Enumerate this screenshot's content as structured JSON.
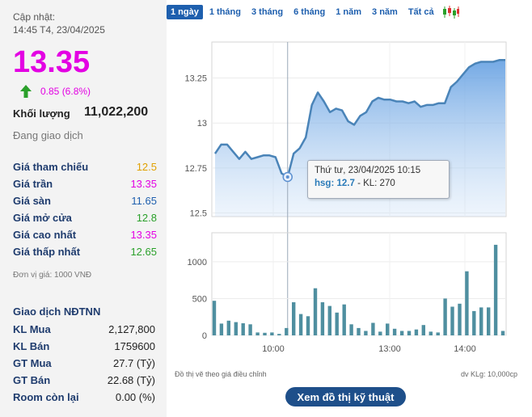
{
  "stock": {
    "updated_label": "Cập nhật:",
    "updated_time": "14:45 T4, 23/04/2025",
    "price": "13.35",
    "change": "0.85 (6.8%)",
    "volume_label": "Khối lượng",
    "volume_value": "11,022,200",
    "status": "Đang giao dịch",
    "unit_note": "Đơn vị giá: 1000 VNĐ"
  },
  "price_rows": [
    {
      "label": "Giá tham chiếu",
      "value": "12.5"
    },
    {
      "label": "Giá trần",
      "value": "13.35"
    },
    {
      "label": "Giá sàn",
      "value": "11.65"
    },
    {
      "label": "Giá mở cửa",
      "value": "12.8"
    },
    {
      "label": "Giá cao nhất",
      "value": "13.35"
    },
    {
      "label": "Giá thấp nhất",
      "value": "12.65"
    }
  ],
  "foreign": {
    "title": "Giao dịch NĐTNN",
    "rows": [
      {
        "label": "KL Mua",
        "value": "2,127,800"
      },
      {
        "label": "KL Bán",
        "value": "1759600"
      },
      {
        "label": "GT Mua",
        "value": "27.7 (Tỷ)"
      },
      {
        "label": "GT Bán",
        "value": "22.68 (Tỷ)"
      },
      {
        "label": "Room còn lại",
        "value": "0.00 (%)"
      }
    ]
  },
  "tabs": [
    "1 ngày",
    "1 tháng",
    "3 tháng",
    "6 tháng",
    "1 năm",
    "3 năm",
    "Tất cả"
  ],
  "active_tab": 0,
  "colors": {
    "price": "#e300e3",
    "up": "#2aa02a",
    "reference": "#e0a000",
    "floor": "#1e5fae",
    "line": "#4a84b8",
    "bar": "#4f8fa0",
    "button": "#1e4f8a"
  },
  "tooltip": {
    "title": "Thứ tư, 23/04/2025 10:15",
    "hsg_label": "hsg:",
    "hsg_value": "12.7",
    "kl_text": "- KL: 270"
  },
  "notes": {
    "left": "Đồ thị vẽ theo giá điều chỉnh",
    "right": "dv KLg: 10,000cp"
  },
  "button_label": "Xem đồ thị kỹ thuật",
  "chart_data": [
    {
      "type": "area",
      "title": "",
      "series": [
        {
          "values": [
            12.83,
            12.88,
            12.88,
            12.84,
            12.8,
            12.84,
            12.8,
            12.81,
            12.82,
            12.82,
            12.81,
            12.72,
            12.7,
            12.83,
            12.86,
            12.92,
            13.1,
            13.17,
            13.12,
            13.06,
            13.08,
            13.07,
            13.01,
            12.99,
            13.04,
            13.06,
            13.12,
            13.14,
            13.13,
            13.13,
            13.12,
            13.12,
            13.11,
            13.12,
            13.09,
            13.1,
            13.1,
            13.11,
            13.11,
            13.2,
            13.23,
            13.27,
            13.31,
            13.33,
            13.34,
            13.34,
            13.34,
            13.35,
            13.35
          ]
        }
      ],
      "y_ticks": [
        12.5,
        12.75,
        13,
        13.25
      ],
      "ylim": [
        12.48,
        13.45
      ],
      "x_ticks": [
        "10:00",
        "13:00",
        "14:00"
      ],
      "highlight_index": 12
    },
    {
      "type": "bar",
      "title": "",
      "values": [
        470,
        160,
        200,
        180,
        165,
        150,
        40,
        35,
        40,
        20,
        100,
        450,
        290,
        260,
        640,
        450,
        400,
        310,
        420,
        150,
        100,
        60,
        170,
        50,
        160,
        90,
        60,
        60,
        80,
        140,
        50,
        40,
        500,
        390,
        430,
        870,
        330,
        380,
        380,
        1230,
        60
      ],
      "y_ticks": [
        0,
        500,
        1000
      ],
      "ylim": [
        0,
        1350
      ]
    }
  ]
}
